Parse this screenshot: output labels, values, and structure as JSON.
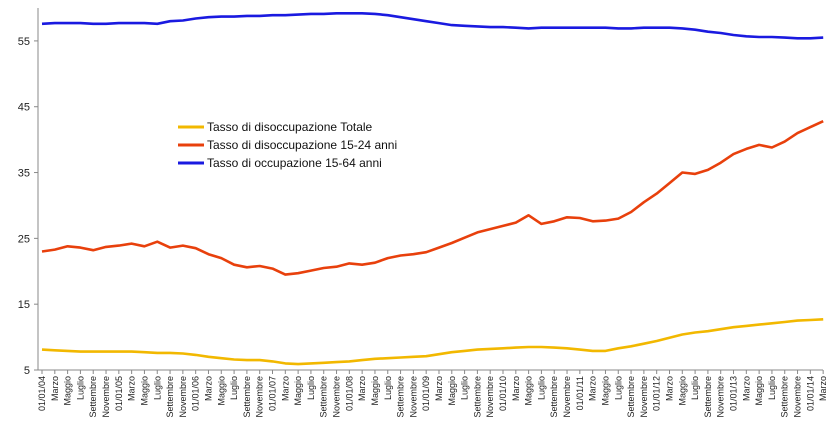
{
  "chart_data": {
    "type": "line",
    "title": "",
    "xlabel": "",
    "ylabel": "",
    "ylim": [
      5,
      60
    ],
    "yticks": [
      5,
      15,
      25,
      35,
      45,
      55
    ],
    "grid": false,
    "legend_position": "center-left",
    "x": [
      "01/01/04",
      "Marzo",
      "Maggio",
      "Luglio",
      "Settembre",
      "Novembre",
      "01/01/05",
      "Marzo",
      "Maggio",
      "Luglio",
      "Settembre",
      "Novembre",
      "01/01/06",
      "Marzo",
      "Maggio",
      "Luglio",
      "Settembre",
      "Novembre",
      "01/01/07",
      "Marzo",
      "Maggio",
      "Luglio",
      "Settembre",
      "Novembre",
      "01/01/08",
      "Marzo",
      "Maggio",
      "Luglio",
      "Settembre",
      "Novembre",
      "01/01/09",
      "Marzo",
      "Maggio",
      "Luglio",
      "Settembre",
      "Novembre",
      "01/01/10",
      "Marzo",
      "Maggio",
      "Luglio",
      "Settembre",
      "Novembre",
      "01/01/11",
      "Marzo",
      "Maggio",
      "Luglio",
      "Settembre",
      "Novembre",
      "01/01/12",
      "Marzo",
      "Maggio",
      "Luglio",
      "Settembre",
      "Novembre",
      "01/01/13",
      "Marzo",
      "Maggio",
      "Luglio",
      "Settembre",
      "Novembre",
      "01/01/14",
      "Marzo"
    ],
    "series": [
      {
        "name": "Tasso di  disoccupazione Totale",
        "color": "#f2b800",
        "values": [
          8.1,
          8.0,
          7.9,
          7.8,
          7.8,
          7.8,
          7.8,
          7.8,
          7.7,
          7.6,
          7.6,
          7.5,
          7.3,
          7.0,
          6.8,
          6.6,
          6.5,
          6.5,
          6.3,
          6.0,
          5.9,
          6.0,
          6.1,
          6.2,
          6.3,
          6.5,
          6.7,
          6.8,
          6.9,
          7.0,
          7.1,
          7.4,
          7.7,
          7.9,
          8.1,
          8.2,
          8.3,
          8.4,
          8.5,
          8.5,
          8.4,
          8.3,
          8.1,
          7.9,
          7.9,
          8.3,
          8.6,
          9.0,
          9.4,
          9.9,
          10.4,
          10.7,
          10.9,
          11.2,
          11.5,
          11.7,
          11.9,
          12.1,
          12.3,
          12.5,
          12.6,
          12.7
        ]
      },
      {
        "name": "Tasso di  disoccupazione 15-24 anni",
        "color": "#e8400c",
        "values": [
          23.0,
          23.3,
          23.8,
          23.6,
          23.2,
          23.7,
          23.9,
          24.2,
          23.8,
          24.5,
          23.6,
          23.9,
          23.5,
          22.6,
          22.0,
          21.0,
          20.6,
          20.8,
          20.4,
          19.5,
          19.7,
          20.1,
          20.5,
          20.7,
          21.2,
          21.0,
          21.3,
          22.0,
          22.4,
          22.6,
          22.9,
          23.6,
          24.3,
          25.1,
          25.9,
          26.4,
          26.9,
          27.4,
          28.5,
          27.2,
          27.6,
          28.2,
          28.1,
          27.6,
          27.7,
          28.0,
          29.0,
          30.5,
          31.8,
          33.4,
          35.0,
          34.8,
          35.4,
          36.5,
          37.8,
          38.6,
          39.2,
          38.8,
          39.7,
          41.0,
          41.9,
          42.8
        ]
      },
      {
        "name": "Tasso di occupazione 15-64 anni",
        "color": "#1a1ae0",
        "values": [
          57.6,
          57.7,
          57.7,
          57.7,
          57.6,
          57.6,
          57.7,
          57.7,
          57.7,
          57.6,
          58.0,
          58.1,
          58.4,
          58.6,
          58.7,
          58.7,
          58.8,
          58.8,
          58.9,
          58.9,
          59.0,
          59.1,
          59.1,
          59.2,
          59.2,
          59.2,
          59.1,
          58.9,
          58.6,
          58.3,
          58.0,
          57.7,
          57.4,
          57.3,
          57.2,
          57.1,
          57.1,
          57.0,
          56.9,
          57.0,
          57.0,
          57.0,
          57.0,
          57.0,
          57.0,
          56.9,
          56.9,
          57.0,
          57.0,
          57.0,
          56.9,
          56.7,
          56.4,
          56.2,
          55.9,
          55.7,
          55.6,
          55.6,
          55.5,
          55.4,
          55.4,
          55.5
        ]
      }
    ]
  }
}
